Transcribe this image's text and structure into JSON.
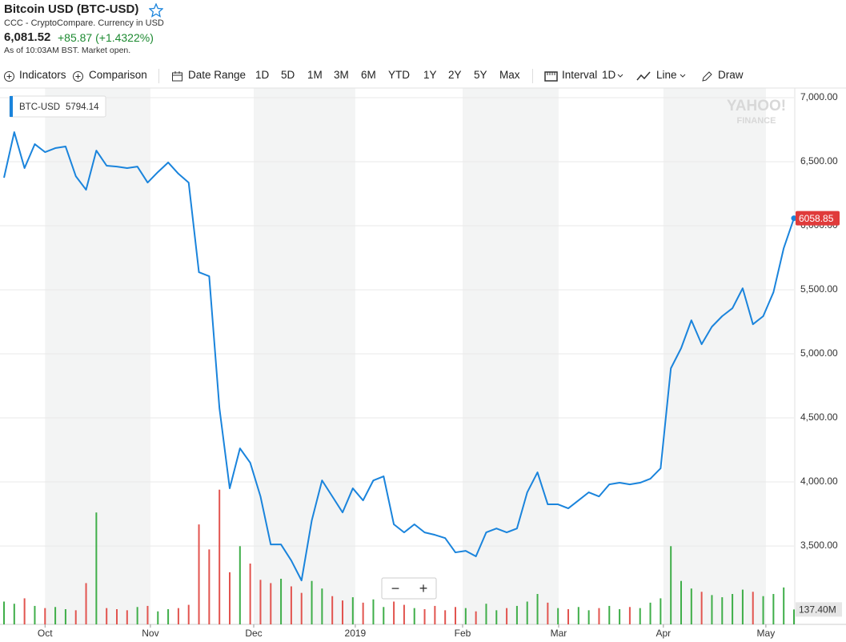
{
  "header": {
    "title": "Bitcoin USD (BTC-USD)",
    "source": "CCC - CryptoCompare. Currency in USD",
    "price": "6,081.52",
    "change": "+85.87 (+1.4322%)",
    "as_of": "As of 10:03AM BST. Market open."
  },
  "toolbar": {
    "indicators": "Indicators",
    "comparison": "Comparison",
    "date_range": "Date Range",
    "ranges": [
      "1D",
      "5D",
      "1M",
      "3M",
      "6M",
      "YTD",
      "1Y",
      "2Y",
      "5Y",
      "Max"
    ],
    "interval": "Interval",
    "interval_value": "1D",
    "chart_style": "Line",
    "draw": "Draw"
  },
  "chart_data": {
    "type": "line",
    "series": [
      {
        "name": "BTC-USD",
        "color": "#1a84dc",
        "values": [
          6375,
          6731,
          6450,
          6637,
          6575,
          6606,
          6619,
          6387,
          6281,
          6587,
          6469,
          6462,
          6450,
          6462,
          6337,
          6419,
          6494,
          6406,
          6337,
          5637,
          5606,
          4575,
          3950,
          4262,
          4150,
          3887,
          3512,
          3512,
          3387,
          3231,
          3700,
          4012,
          3887,
          3762,
          3950,
          3856,
          4012,
          4044,
          3669,
          3606,
          3669,
          3606,
          3587,
          3562,
          3450,
          3462,
          3419,
          3606,
          3637,
          3606,
          3637,
          3919,
          4075,
          3825,
          3825,
          3794,
          3856,
          3919,
          3887,
          3981,
          3994,
          3981,
          3994,
          4025,
          4106,
          4887,
          5044,
          5262,
          5075,
          5212,
          5294,
          5356,
          5512,
          5231,
          5294,
          5481,
          5825,
          6058.85
        ]
      }
    ],
    "tooltip_value": 5794.14,
    "xlim": [
      0,
      77
    ],
    "xticks": [
      {
        "value": 4,
        "label": "Oct"
      },
      {
        "value": 14.27,
        "label": "Nov"
      },
      {
        "value": 24.34,
        "label": "Dec"
      },
      {
        "value": 34.24,
        "label": "2019"
      },
      {
        "value": 44.7,
        "label": "Feb"
      },
      {
        "value": 54.06,
        "label": "Mar"
      },
      {
        "value": 64.27,
        "label": "Apr"
      },
      {
        "value": 74.26,
        "label": "May"
      }
    ],
    "ylim": [
      2888,
      7075
    ],
    "yticks": [
      {
        "value": 3500,
        "label": "3,500.00"
      },
      {
        "value": 4000,
        "label": "4,000.00"
      },
      {
        "value": 4500,
        "label": "4,500.00"
      },
      {
        "value": 5000,
        "label": "5,000.00"
      },
      {
        "value": 5500,
        "label": "5,500.00"
      },
      {
        "value": 6000,
        "label": "6,000.00"
      },
      {
        "value": 6500,
        "label": "6,500.00"
      },
      {
        "value": 7000,
        "label": "7,000.00"
      }
    ],
    "grid": true,
    "volume": {
      "vlim": [
        0,
        1400
      ],
      "up_color": "#3fae49",
      "down_color": "#e2544f",
      "last_label": "137.40M",
      "values": [
        210,
        190,
        240,
        170,
        150,
        160,
        140,
        130,
        380,
        1030,
        150,
        140,
        130,
        160,
        170,
        120,
        140,
        150,
        180,
        920,
        690,
        1240,
        480,
        720,
        560,
        410,
        380,
        420,
        350,
        290,
        400,
        330,
        260,
        220,
        250,
        200,
        230,
        160,
        210,
        180,
        150,
        140,
        170,
        130,
        160,
        150,
        120,
        190,
        130,
        150,
        170,
        210,
        280,
        200,
        150,
        140,
        160,
        130,
        150,
        170,
        140,
        160,
        150,
        200,
        240,
        720,
        400,
        330,
        300,
        270,
        250,
        280,
        320,
        300,
        260,
        280,
        340,
        137.4
      ]
    },
    "watermark": [
      "YAHOO!",
      "FINANCE"
    ],
    "zoom": [
      "−",
      "+"
    ]
  }
}
